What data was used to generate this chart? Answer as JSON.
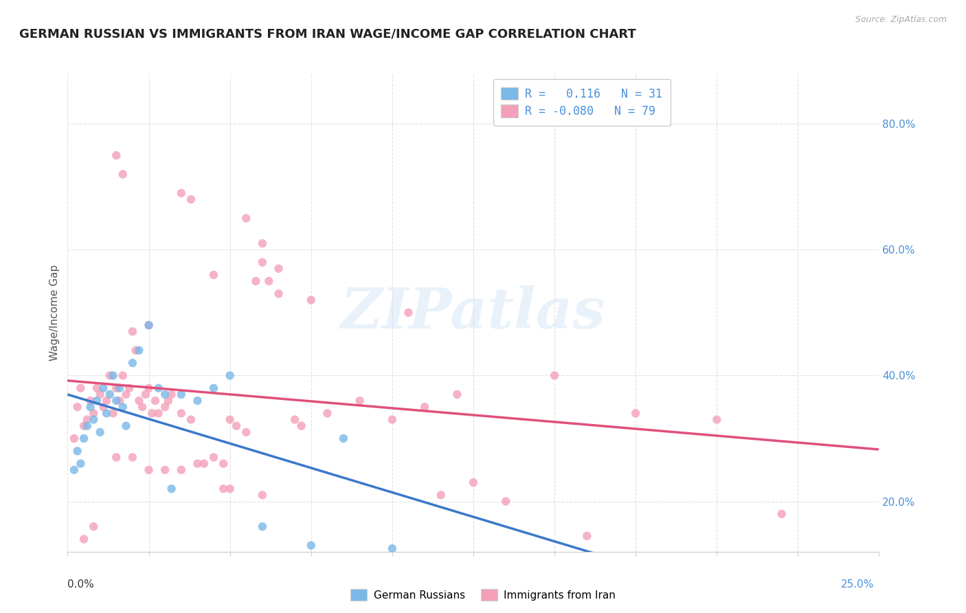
{
  "title": "GERMAN RUSSIAN VS IMMIGRANTS FROM IRAN WAGE/INCOME GAP CORRELATION CHART",
  "source": "Source: ZipAtlas.com",
  "ylabel": "Wage/Income Gap",
  "xmin": 0.0,
  "xmax": 25.0,
  "ymin": 12.0,
  "ymax": 88.0,
  "ytick_values": [
    20.0,
    40.0,
    60.0,
    80.0
  ],
  "xtick_values": [
    0.0,
    2.5,
    5.0,
    7.5,
    10.0,
    12.5,
    15.0,
    17.5,
    20.0,
    22.5,
    25.0
  ],
  "watermark": "ZIPatlas",
  "blue_scatter_x": [
    0.3,
    0.4,
    0.5,
    0.6,
    0.7,
    0.8,
    0.9,
    1.0,
    1.1,
    1.2,
    1.3,
    1.4,
    1.5,
    1.6,
    1.7,
    1.8,
    2.0,
    2.2,
    2.5,
    2.8,
    3.0,
    3.5,
    4.0,
    4.5,
    5.0,
    3.2,
    6.0,
    7.5,
    8.5,
    10.0,
    0.2
  ],
  "blue_scatter_y": [
    28.0,
    26.0,
    30.0,
    32.0,
    35.0,
    33.0,
    36.0,
    31.0,
    38.0,
    34.0,
    37.0,
    40.0,
    36.0,
    38.0,
    35.0,
    32.0,
    42.0,
    44.0,
    48.0,
    38.0,
    37.0,
    37.0,
    36.0,
    38.0,
    40.0,
    22.0,
    16.0,
    13.0,
    30.0,
    12.5,
    25.0
  ],
  "pink_scatter_x": [
    0.2,
    0.3,
    0.4,
    0.5,
    0.6,
    0.7,
    0.8,
    0.9,
    1.0,
    1.1,
    1.2,
    1.3,
    1.4,
    1.5,
    1.6,
    1.7,
    1.8,
    1.9,
    2.0,
    2.1,
    2.2,
    2.3,
    2.4,
    2.5,
    2.6,
    2.7,
    2.8,
    3.0,
    3.1,
    3.2,
    3.5,
    3.8,
    4.0,
    4.2,
    4.5,
    4.8,
    5.0,
    5.2,
    5.5,
    5.8,
    6.0,
    6.2,
    6.5,
    7.0,
    7.2,
    8.0,
    9.0,
    10.0,
    11.0,
    12.0,
    1.5,
    1.7,
    3.5,
    3.8,
    5.5,
    6.0,
    6.5,
    7.5,
    2.5,
    4.5,
    10.5,
    15.0,
    20.0,
    22.0,
    16.0,
    13.5,
    11.5,
    17.5,
    12.5,
    0.5,
    0.8,
    1.5,
    2.0,
    2.5,
    3.0,
    3.5,
    5.0,
    6.0,
    4.8
  ],
  "pink_scatter_y": [
    30.0,
    35.0,
    38.0,
    32.0,
    33.0,
    36.0,
    34.0,
    38.0,
    37.0,
    35.0,
    36.0,
    40.0,
    34.0,
    38.0,
    36.0,
    40.0,
    37.0,
    38.0,
    47.0,
    44.0,
    36.0,
    35.0,
    37.0,
    38.0,
    34.0,
    36.0,
    34.0,
    35.0,
    36.0,
    37.0,
    34.0,
    33.0,
    26.0,
    26.0,
    27.0,
    26.0,
    33.0,
    32.0,
    31.0,
    55.0,
    58.0,
    55.0,
    53.0,
    33.0,
    32.0,
    34.0,
    36.0,
    33.0,
    35.0,
    37.0,
    75.0,
    72.0,
    69.0,
    68.0,
    65.0,
    61.0,
    57.0,
    52.0,
    48.0,
    56.0,
    50.0,
    40.0,
    33.0,
    18.0,
    14.5,
    20.0,
    21.0,
    34.0,
    23.0,
    14.0,
    16.0,
    27.0,
    27.0,
    25.0,
    25.0,
    25.0,
    22.0,
    21.0,
    22.0
  ],
  "blue_color": "#7ab8e8",
  "pink_color": "#f4a0b8",
  "blue_line_color": "#3a78c9",
  "pink_line_color": "#e0507a",
  "blue_dash_color": "#aaccee",
  "legend_r_blue": "R =   0.116   N = 31",
  "legend_r_pink": "R = -0.080   N = 79",
  "legend_text_color": "#4a90d9",
  "scatter_size": 80,
  "scatter_alpha": 0.8,
  "grid_color": "#e0e0e0",
  "background_color": "#ffffff",
  "title_fontsize": 13,
  "axis_label_fontsize": 11,
  "tick_fontsize": 11
}
